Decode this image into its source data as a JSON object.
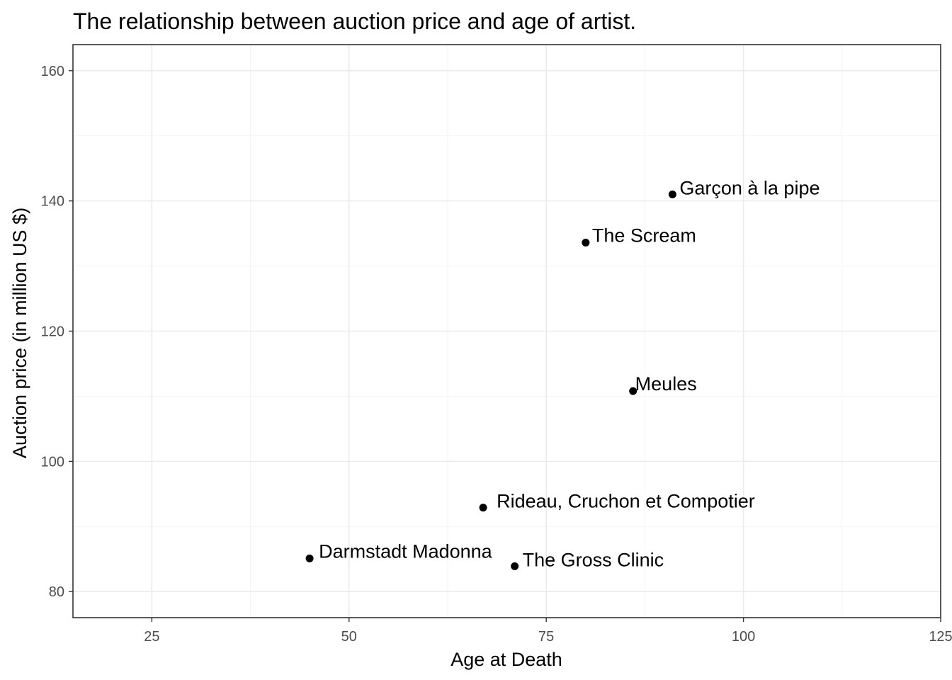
{
  "chart_data": {
    "type": "scatter",
    "title": "The relationship between auction price and age of artist.",
    "xlabel": "Age at Death",
    "ylabel": "Auction price (in million US $)",
    "xlim": [
      15,
      125
    ],
    "ylim": [
      76,
      164
    ],
    "xticks": [
      25,
      50,
      75,
      100,
      125
    ],
    "yticks": [
      80,
      100,
      120,
      140,
      160
    ],
    "x_tick_labels": [
      "25",
      "50",
      "75",
      "100",
      "125"
    ],
    "y_tick_labels": [
      "80",
      "100",
      "120",
      "140",
      "160"
    ],
    "grid": true,
    "legend": "none",
    "point_color": "#000000",
    "points": [
      {
        "label": "Garçon à la pipe",
        "x": 91,
        "y": 141.0
      },
      {
        "label": "The Scream",
        "x": 80,
        "y": 133.6
      },
      {
        "label": "Meules",
        "x": 86,
        "y": 110.8
      },
      {
        "label": "Rideau, Cruchon et Compotier",
        "x": 67,
        "y": 92.9
      },
      {
        "label": "Darmstadt Madonna",
        "x": 45,
        "y": 85.1
      },
      {
        "label": "The Gross Clinic",
        "x": 71,
        "y": 83.9
      }
    ]
  }
}
